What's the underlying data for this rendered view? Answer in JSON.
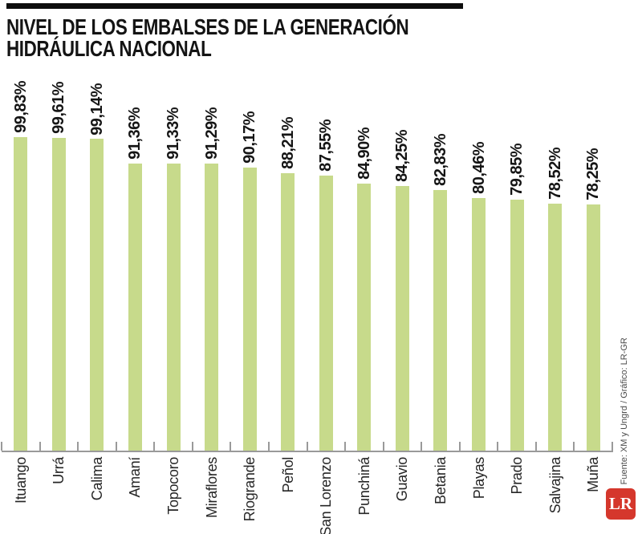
{
  "header": {
    "title_line1": "NIVEL DE LOS EMBALSES DE LA GENERACIÓN",
    "title_line2": "HIDRÁULICA NACIONAL"
  },
  "chart_data": {
    "type": "bar",
    "title": "Nivel de los embalses de la generación hidráulica nacional",
    "categories": [
      "Ituango",
      "Urrá",
      "Calima",
      "Amaní",
      "Topocoro",
      "Miraflores",
      "Riogrande",
      "Peñol",
      "San Lorenzo",
      "Punchiná",
      "Guavio",
      "Betania",
      "Playas",
      "Prado",
      "Salvajina",
      "Muña"
    ],
    "values": [
      99.83,
      99.61,
      99.14,
      91.36,
      91.33,
      91.29,
      90.17,
      88.21,
      87.55,
      84.9,
      84.25,
      82.83,
      80.46,
      79.85,
      78.52,
      78.25
    ],
    "value_labels": [
      "99,83%",
      "99,61%",
      "99,14%",
      "91,36%",
      "91,33%",
      "91,29%",
      "90,17%",
      "88,21%",
      "87,55%",
      "84,90%",
      "84,25%",
      "82,83%",
      "80,46%",
      "79,85%",
      "78,52%",
      "78,25%"
    ],
    "ylabel": "",
    "xlabel": "",
    "ylim": [
      0,
      100
    ],
    "grid": false,
    "legend": null,
    "bar_color": "#c7da8b",
    "axis_color": "#9a9a9a",
    "value_label_rotation": -90,
    "category_label_rotation": -90
  },
  "footer": {
    "credit": "Fuente: XM y Ungrd / Gráfico: LR-GR",
    "logo_text": "LR",
    "logo_color": "#d5372c"
  }
}
